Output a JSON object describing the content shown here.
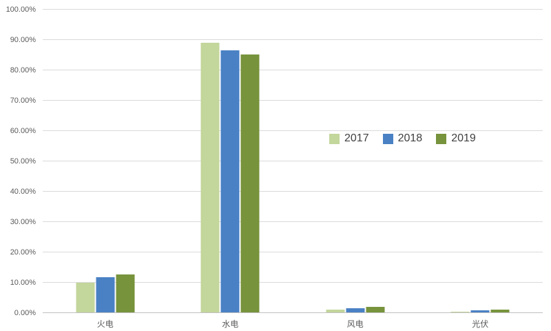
{
  "chart_data": {
    "type": "bar",
    "title": "",
    "xlabel": "",
    "ylabel": "",
    "categories": [
      "火电",
      "水电",
      "风电",
      "光伏"
    ],
    "series": [
      {
        "name": "2017",
        "color": "#c3d69b",
        "values": [
          9.8,
          88.9,
          1.0,
          0.3
        ]
      },
      {
        "name": "2018",
        "color": "#4a81c4",
        "values": [
          11.5,
          86.4,
          1.4,
          0.7
        ]
      },
      {
        "name": "2019",
        "color": "#77933c",
        "values": [
          12.5,
          84.9,
          1.9,
          0.8
        ]
      }
    ],
    "ylim": [
      0,
      100
    ],
    "y_ticks": [
      "0.00%",
      "10.00%",
      "20.00%",
      "30.00%",
      "40.00%",
      "50.00%",
      "60.00%",
      "70.00%",
      "80.00%",
      "90.00%",
      "100.00%"
    ],
    "grid": true,
    "legend_position": "middle-right"
  },
  "colors": {
    "background": "#ffffff",
    "gridline": "#d9d9d9",
    "axis_line": "#c0c0c0",
    "tick_text": "#595959",
    "legend_text": "#404040"
  }
}
